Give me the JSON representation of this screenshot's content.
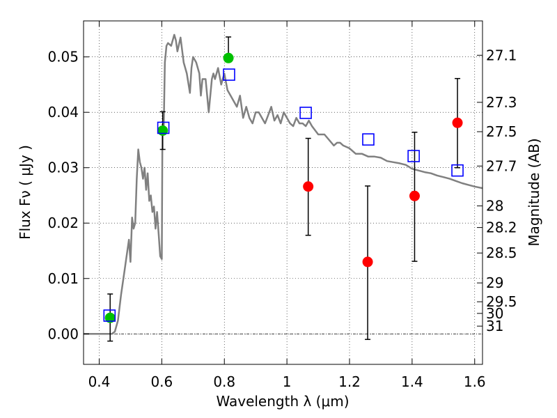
{
  "chart_data": {
    "type": "scatter",
    "title": "",
    "xlabel": "Wavelength  λ (μm)",
    "ylabel": "Flux  Fν  ( μJy )",
    "y2label": "Magnitude (AB)",
    "xlim": [
      0.35,
      1.625
    ],
    "ylim": [
      -0.0055,
      0.0565
    ],
    "grid": true,
    "legend": "none",
    "x_ticks": [
      0.4,
      0.6,
      0.8,
      1.0,
      1.2,
      1.4,
      1.6
    ],
    "x_tick_labels": [
      "0.4",
      "0.6",
      "0.8",
      "1",
      "1.2",
      "1.4",
      "1.6"
    ],
    "y_ticks": [
      0.0,
      0.01,
      0.02,
      0.03,
      0.04,
      0.05
    ],
    "y_tick_labels": [
      "0.00",
      "0.01",
      "0.02",
      "0.03",
      "0.04",
      "0.05"
    ],
    "y2_ticks": [
      {
        "label": "27.1",
        "flux": 0.0503
      },
      {
        "label": "27.3",
        "flux": 0.0418
      },
      {
        "label": "27.5",
        "flux": 0.0365
      },
      {
        "label": "27.7",
        "flux": 0.0303
      },
      {
        "label": "28",
        "flux": 0.0231
      },
      {
        "label": "28.2",
        "flux": 0.0192
      },
      {
        "label": "28.5",
        "flux": 0.0146
      },
      {
        "label": "29",
        "flux": 0.0092
      },
      {
        "label": "29.5",
        "flux": 0.0058
      },
      {
        "label": "30",
        "flux": 0.0037
      },
      {
        "label": "31",
        "flux": 0.0014
      }
    ],
    "colors": {
      "model": "#808080",
      "detected": "#00c000",
      "undetected": "#ff0000",
      "model_photometry": "#0000ff",
      "errorbar": "#000000"
    },
    "series": [
      {
        "marker": "line",
        "x": [
          0.35,
          0.4,
          0.44,
          0.45,
          0.46,
          0.47,
          0.48,
          0.49,
          0.495,
          0.5,
          0.505,
          0.51,
          0.515,
          0.52,
          0.525,
          0.53,
          0.535,
          0.54,
          0.545,
          0.55,
          0.555,
          0.56,
          0.565,
          0.57,
          0.575,
          0.58,
          0.585,
          0.59,
          0.595,
          0.6,
          0.602,
          0.604,
          0.606,
          0.61,
          0.615,
          0.62,
          0.63,
          0.64,
          0.645,
          0.65,
          0.66,
          0.67,
          0.68,
          0.69,
          0.695,
          0.7,
          0.71,
          0.72,
          0.725,
          0.73,
          0.74,
          0.75,
          0.76,
          0.765,
          0.77,
          0.78,
          0.79,
          0.8,
          0.81,
          0.82,
          0.83,
          0.84,
          0.85,
          0.86,
          0.87,
          0.88,
          0.89,
          0.9,
          0.91,
          0.92,
          0.93,
          0.94,
          0.95,
          0.96,
          0.97,
          0.98,
          0.99,
          1.0,
          1.01,
          1.02,
          1.03,
          1.04,
          1.05,
          1.06,
          1.07,
          1.08,
          1.1,
          1.12,
          1.15,
          1.16,
          1.17,
          1.18,
          1.2,
          1.22,
          1.24,
          1.26,
          1.28,
          1.3,
          1.32,
          1.34,
          1.36,
          1.38,
          1.4,
          1.42,
          1.44,
          1.46,
          1.48,
          1.5,
          1.52,
          1.54,
          1.56,
          1.58,
          1.6,
          1.625
        ],
        "y": [
          0.0,
          0.0,
          0.0,
          0.0004,
          0.0024,
          0.0071,
          0.011,
          0.015,
          0.017,
          0.013,
          0.021,
          0.019,
          0.02,
          0.028,
          0.0333,
          0.031,
          0.03,
          0.028,
          0.03,
          0.026,
          0.029,
          0.024,
          0.025,
          0.022,
          0.023,
          0.019,
          0.022,
          0.018,
          0.014,
          0.0135,
          0.037,
          0.038,
          0.036,
          0.049,
          0.052,
          0.0525,
          0.052,
          0.054,
          0.053,
          0.051,
          0.0535,
          0.049,
          0.047,
          0.0435,
          0.048,
          0.05,
          0.049,
          0.047,
          0.043,
          0.046,
          0.046,
          0.04,
          0.046,
          0.047,
          0.046,
          0.048,
          0.045,
          0.047,
          0.044,
          0.043,
          0.042,
          0.041,
          0.043,
          0.039,
          0.041,
          0.039,
          0.038,
          0.04,
          0.04,
          0.039,
          0.038,
          0.0395,
          0.041,
          0.0385,
          0.0395,
          0.038,
          0.04,
          0.039,
          0.038,
          0.0375,
          0.039,
          0.038,
          0.038,
          0.0375,
          0.0385,
          0.0375,
          0.036,
          0.036,
          0.034,
          0.0345,
          0.0345,
          0.034,
          0.0335,
          0.0325,
          0.0325,
          0.032,
          0.032,
          0.0318,
          0.0312,
          0.031,
          0.0308,
          0.0305,
          0.0298,
          0.0295,
          0.0292,
          0.029,
          0.0286,
          0.0283,
          0.028,
          0.0276,
          0.0272,
          0.0269,
          0.0266,
          0.0263
        ]
      },
      {
        "marker": "circle",
        "x": [
          0.435,
          0.603,
          0.813
        ],
        "y": [
          0.0029,
          0.0367,
          0.0498
        ],
        "yerr_low": [
          0.0042,
          0.0034,
          0.0
        ],
        "yerr_high": [
          0.0043,
          0.0034,
          0.0038
        ]
      },
      {
        "marker": "circle",
        "x": [
          1.068,
          1.258,
          1.408,
          1.545
        ],
        "y": [
          0.0266,
          0.013,
          0.0249,
          0.0381
        ],
        "yerr_low": [
          0.0088,
          0.014,
          0.0118,
          0.0081
        ],
        "yerr_high": [
          0.0087,
          0.0137,
          0.0115,
          0.008
        ]
      },
      {
        "marker": "square",
        "x": [
          0.433,
          0.605,
          0.815,
          1.06,
          1.26,
          1.405,
          1.545
        ],
        "y": [
          0.0033,
          0.0372,
          0.0468,
          0.0399,
          0.0351,
          0.0321,
          0.0295
        ]
      }
    ]
  }
}
